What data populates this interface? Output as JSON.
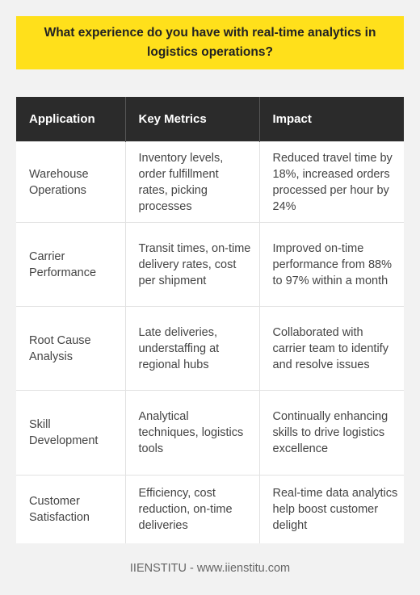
{
  "title": "What experience do you have with real-time analytics in logistics operations?",
  "table": {
    "headers": [
      "Application",
      "Key Metrics",
      "Impact"
    ],
    "rows": [
      {
        "application": "Warehouse Operations",
        "metrics": "Inventory levels, order fulfillment rates, picking processes",
        "impact": "Reduced travel time by 18%, increased orders processed per hour by 24%"
      },
      {
        "application": "Carrier Performance",
        "metrics": "Transit times, on-time delivery rates, cost per shipment",
        "impact": "Improved on-time performance from 88% to 97% within a month"
      },
      {
        "application": "Root Cause Analysis",
        "metrics": "Late deliveries, understaffing at regional hubs",
        "impact": "Collaborated with carrier team to identify and resolve issues"
      },
      {
        "application": "Skill Development",
        "metrics": "Analytical techniques, logistics tools",
        "impact": "Continually enhancing skills to drive logistics excellence"
      },
      {
        "application": "Customer Satisfaction",
        "metrics": "Efficiency, cost reduction, on-time deliveries",
        "impact": "Real-time data analytics help boost customer delight"
      }
    ]
  },
  "footer": "IIENSTITU - www.iienstitu.com",
  "colors": {
    "title_bg": "#ffe01b",
    "header_bg": "#2b2b2b",
    "page_bg": "#f2f2f2"
  }
}
